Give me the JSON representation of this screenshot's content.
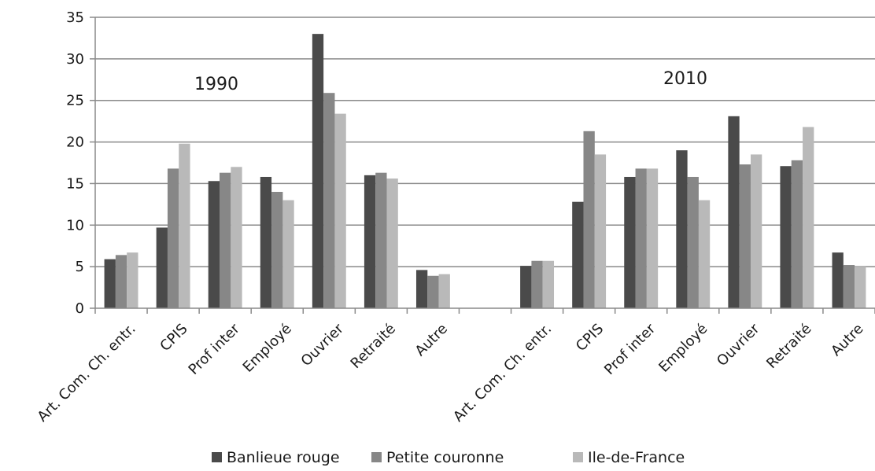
{
  "chart_data": {
    "type": "bar",
    "title": "",
    "xlabel": "",
    "ylabel": "",
    "ylim": [
      0,
      35
    ],
    "yticks": [
      "0",
      "5",
      "10",
      "15",
      "20",
      "25",
      "30",
      "35"
    ],
    "grid": true,
    "legend_position": "bottom",
    "categories": [
      "Art. Com. Ch. entr.",
      "CPIS",
      "Prof inter",
      "Employé",
      "Ouvrier",
      "Retraité",
      "Autre",
      "",
      "Art. Com. Ch. entr.",
      "CPIS",
      "Prof inter",
      "Employé",
      "Ouvrier",
      "Retraité",
      "Autre"
    ],
    "series": [
      {
        "name": "Banlieue rouge",
        "color": "#4a4a4a",
        "values": [
          5.9,
          9.7,
          15.3,
          15.8,
          33.0,
          16.0,
          4.6,
          null,
          5.1,
          12.8,
          15.8,
          19.0,
          23.1,
          17.1,
          6.7
        ]
      },
      {
        "name": "Petite couronne",
        "color": "#878787",
        "values": [
          6.4,
          16.8,
          16.3,
          14.0,
          25.9,
          16.3,
          3.9,
          null,
          5.7,
          21.3,
          16.8,
          15.8,
          17.3,
          17.8,
          5.2
        ]
      },
      {
        "name": "Ile-de-France",
        "color": "#b9b9b9",
        "values": [
          6.7,
          19.8,
          17.0,
          13.0,
          23.4,
          15.6,
          4.1,
          null,
          5.7,
          18.5,
          16.8,
          13.0,
          18.5,
          21.8,
          5.0
        ]
      }
    ],
    "annotations": [
      "1990",
      "2010"
    ]
  }
}
